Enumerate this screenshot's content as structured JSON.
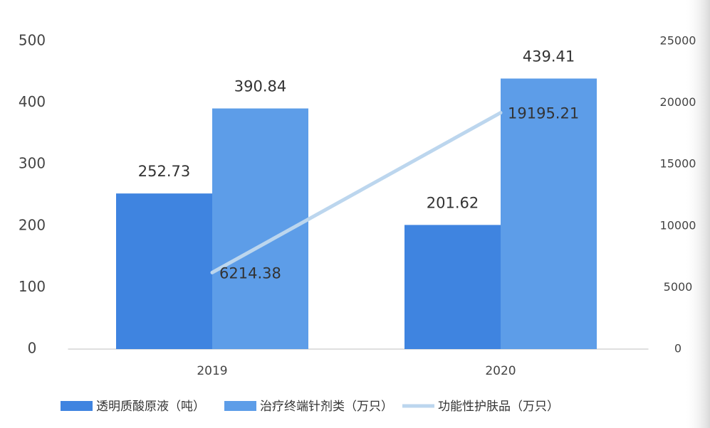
{
  "chart_data": {
    "type": "bar",
    "categories": [
      "2019",
      "2020"
    ],
    "series": [
      {
        "name": "透明质酸原液（吨）",
        "type": "bar",
        "color": "#3f84e0",
        "values": [
          252.73,
          201.62
        ]
      },
      {
        "name": "治疗终端针剂类（万只）",
        "type": "bar",
        "color": "#5d9de8",
        "values": [
          390.84,
          439.41
        ]
      },
      {
        "name": "功能性护肤品（万只）",
        "type": "line",
        "axis": "y2",
        "color": "#bcd6ee",
        "values": [
          6214.38,
          19195.21
        ]
      }
    ],
    "ylim": [
      0,
      500
    ],
    "yticks": [
      0,
      100,
      200,
      300,
      400,
      500
    ],
    "y2lim": [
      0,
      25000
    ],
    "y2ticks": [
      0,
      5000,
      10000,
      15000,
      20000,
      25000
    ],
    "grid": false,
    "legend": "bottom"
  }
}
